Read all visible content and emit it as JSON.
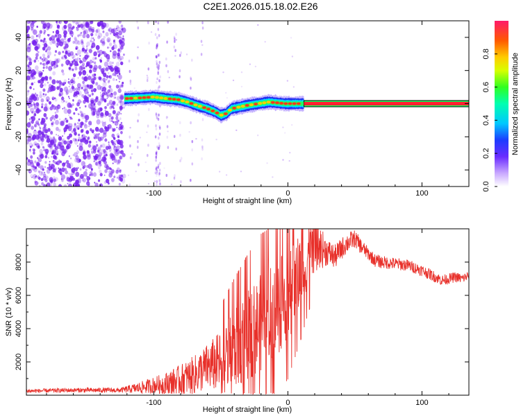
{
  "title": "C2E1.2026.015.18.02.E26",
  "colors": {
    "snr_line": "#e8302a",
    "scatter_purple": "#7722ee",
    "frame": "#000000"
  },
  "chart_data": [
    {
      "type": "heatmap",
      "name": "spectrogram",
      "xlabel": "Height of straight line (km)",
      "ylabel": "Frequency (Hz)",
      "xlim": [
        -195,
        135
      ],
      "ylim": [
        -50,
        50
      ],
      "xticks": [
        -100,
        0,
        100
      ],
      "xtick_labels": [
        "-100",
        "0",
        "100"
      ],
      "yticks": [
        -40,
        -20,
        0,
        20,
        40
      ],
      "ytick_labels": [
        "-40",
        "-20",
        "0",
        "20",
        "40"
      ],
      "noise_region_x": [
        -195,
        -122
      ],
      "ridge": {
        "x": [
          -122,
          -110,
          -100,
          -90,
          -82,
          -75,
          -68,
          -60,
          -54,
          -50,
          -46,
          -42,
          -36,
          -30,
          -22,
          -14,
          -8,
          -2,
          5,
          12,
          135
        ],
        "y": [
          3,
          3.5,
          4,
          3,
          2.5,
          1,
          -1,
          -3,
          -5,
          -7,
          -6,
          -3,
          -2,
          -1,
          0,
          1,
          0.5,
          0,
          0,
          0,
          0
        ]
      },
      "colorbar": {
        "label": "Normalized spectral amplitude",
        "ticks": [
          0.0,
          0.2,
          0.4,
          0.6,
          0.8
        ],
        "tick_labels": [
          "0.0",
          "0.2",
          "0.4",
          "0.6",
          "0.8"
        ],
        "range": [
          0,
          1
        ]
      }
    },
    {
      "type": "line",
      "name": "snr",
      "xlabel": "Height of straight line (km)",
      "ylabel": "SNR (10 * v/v)",
      "xlim": [
        -195,
        135
      ],
      "ylim": [
        0,
        10000
      ],
      "xticks": [
        -100,
        0,
        100
      ],
      "xtick_labels": [
        "-100",
        "0",
        "100"
      ],
      "yticks": [
        2000,
        4000,
        6000,
        8000
      ],
      "ytick_labels": [
        "2000",
        "4000",
        "6000",
        "8000"
      ],
      "envelope": {
        "x": [
          -195,
          -160,
          -125,
          -110,
          -100,
          -90,
          -80,
          -70,
          -60,
          -50,
          -40,
          -30,
          -20,
          -10,
          0,
          10,
          15,
          20,
          25,
          30,
          35,
          40,
          45,
          50,
          55,
          60,
          65,
          70,
          80,
          90,
          100,
          110,
          115,
          120,
          125,
          130,
          135
        ],
        "y": [
          250,
          300,
          300,
          450,
          600,
          700,
          900,
          1200,
          1700,
          2000,
          2700,
          3600,
          4300,
          5000,
          6000,
          7500,
          8500,
          9000,
          8800,
          8600,
          8300,
          8800,
          9200,
          9400,
          8900,
          8500,
          8100,
          8000,
          7900,
          7800,
          7500,
          7100,
          6900,
          7000,
          7100,
          7000,
          7200
        ]
      },
      "noise_amp": {
        "x": [
          -195,
          -125,
          -100,
          -60,
          -40,
          -20,
          0,
          15,
          30,
          60,
          135
        ],
        "y": [
          120,
          150,
          500,
          1400,
          2400,
          3000,
          2800,
          2000,
          800,
          400,
          300
        ]
      }
    }
  ]
}
